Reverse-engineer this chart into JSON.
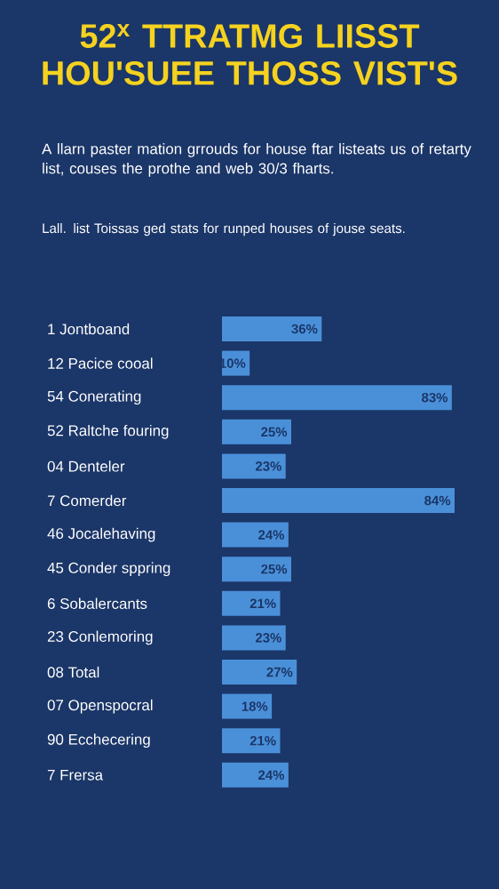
{
  "chart_data": {
    "type": "bar",
    "orientation": "horizontal",
    "title": "52$^{x}$ TTRATMG LIISST HOU'SUEE THOSS VIST'S",
    "subtitle": "A llarn paster mation grrouds for house ftar listeats us of retarty list, couses the prothe and web 30/3 fharts.",
    "annotations": [
      "Lall. list Toissas ged stats for runped houses of jouse seats."
    ],
    "categories": [
      "1 Jontboand",
      "12 Pacice cooal",
      "54 Conerating",
      "52 Raltche fouring",
      "04 Denteler",
      "7 Comerder",
      "46 Jocalehaving",
      "45 Conder sppring",
      "6 Sobalercants",
      "23 Conlemoring",
      "08 Total",
      "07 Openspocral",
      "90 Ecchecering",
      "7 Frersa"
    ],
    "values": [
      36,
      10,
      83,
      25,
      23,
      84,
      24,
      25,
      21,
      23,
      27,
      18,
      21,
      24
    ],
    "value_labels": [
      "36%",
      "10%",
      "83%",
      "25%",
      "23%",
      "84%",
      "24%",
      "25%",
      "21%",
      "23%",
      "27%",
      "18%",
      "21%",
      "24%"
    ],
    "color": "#4a90d9"
  }
}
